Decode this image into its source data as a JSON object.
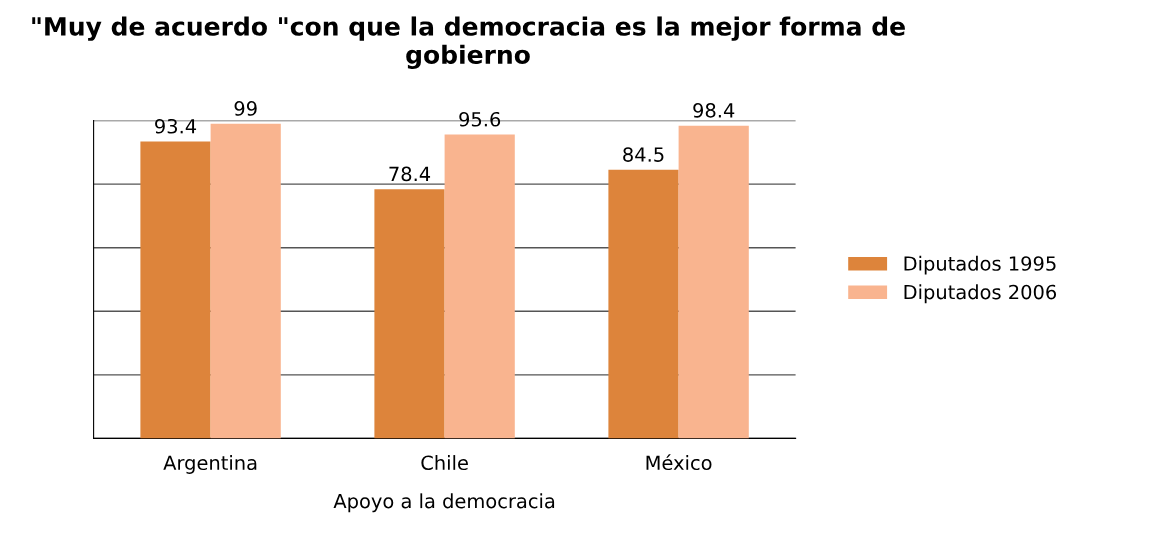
{
  "chart_data": {
    "type": "bar",
    "title": "\"Muy de acuerdo \"con que la democracia es la mejor forma de gobierno",
    "categories": [
      "Argentina",
      "Chile",
      "México"
    ],
    "xlabel": "Apoyo a la democracia",
    "series": [
      {
        "name": "Diputados 1995",
        "color": "#dd843b",
        "values": [
          93.4,
          78.4,
          84.5
        ]
      },
      {
        "name": "Diputados 2006",
        "color": "#f9b48f",
        "values": [
          99,
          95.6,
          98.4
        ]
      }
    ],
    "ylim": [
      0,
      100
    ],
    "yticks": [
      {
        "value": 0,
        "label": null
      },
      {
        "value": 20,
        "label": null
      },
      {
        "value": 40,
        "label": null
      },
      {
        "value": 60,
        "label": null
      },
      {
        "value": 80,
        "label": null
      },
      {
        "value": 100,
        "label": null
      }
    ],
    "tick_labels": "x",
    "grid": "y",
    "legend": "right",
    "data_labels": true
  }
}
